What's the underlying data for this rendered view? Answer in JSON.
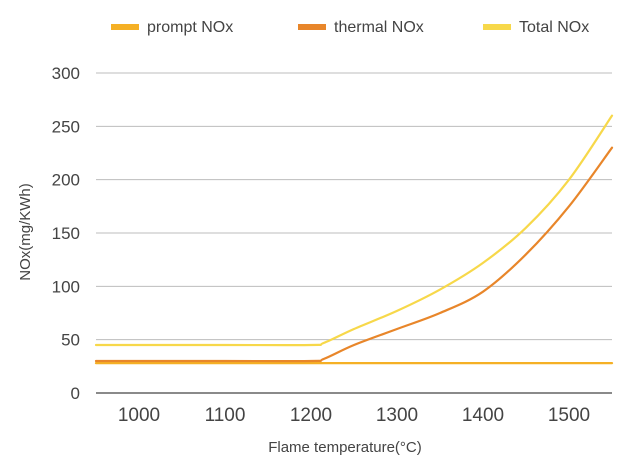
{
  "chart_data": {
    "type": "line",
    "title": "",
    "xlabel": "Flame temperature(°C)",
    "ylabel": "NOx(mg/KWh)",
    "xlim": [
      950,
      1550
    ],
    "ylim": [
      0,
      300
    ],
    "xticks": [
      1000,
      1100,
      1200,
      1300,
      1400,
      1500
    ],
    "yticks": [
      0,
      50,
      100,
      150,
      200,
      250,
      300
    ],
    "grid": "horizontal",
    "legend_position": "top",
    "series": [
      {
        "name": "prompt NOx",
        "color": "#f5b025",
        "x": [
          950,
          1000,
          1100,
          1200,
          1300,
          1400,
          1500,
          1550
        ],
        "y": [
          28,
          28,
          28,
          28,
          28,
          28,
          28,
          28
        ]
      },
      {
        "name": "thermal NOx",
        "color": "#e8862a",
        "x": [
          950,
          1000,
          1100,
          1200,
          1215,
          1250,
          1300,
          1350,
          1400,
          1450,
          1500,
          1550
        ],
        "y": [
          30,
          30,
          30,
          30,
          32,
          45,
          60,
          75,
          95,
          130,
          175,
          230
        ]
      },
      {
        "name": "Total NOx",
        "color": "#f7d84a",
        "x": [
          950,
          1000,
          1100,
          1200,
          1215,
          1250,
          1300,
          1350,
          1400,
          1450,
          1500,
          1550
        ],
        "y": [
          45,
          45,
          45,
          45,
          47,
          60,
          77,
          97,
          122,
          155,
          200,
          260
        ]
      }
    ]
  }
}
